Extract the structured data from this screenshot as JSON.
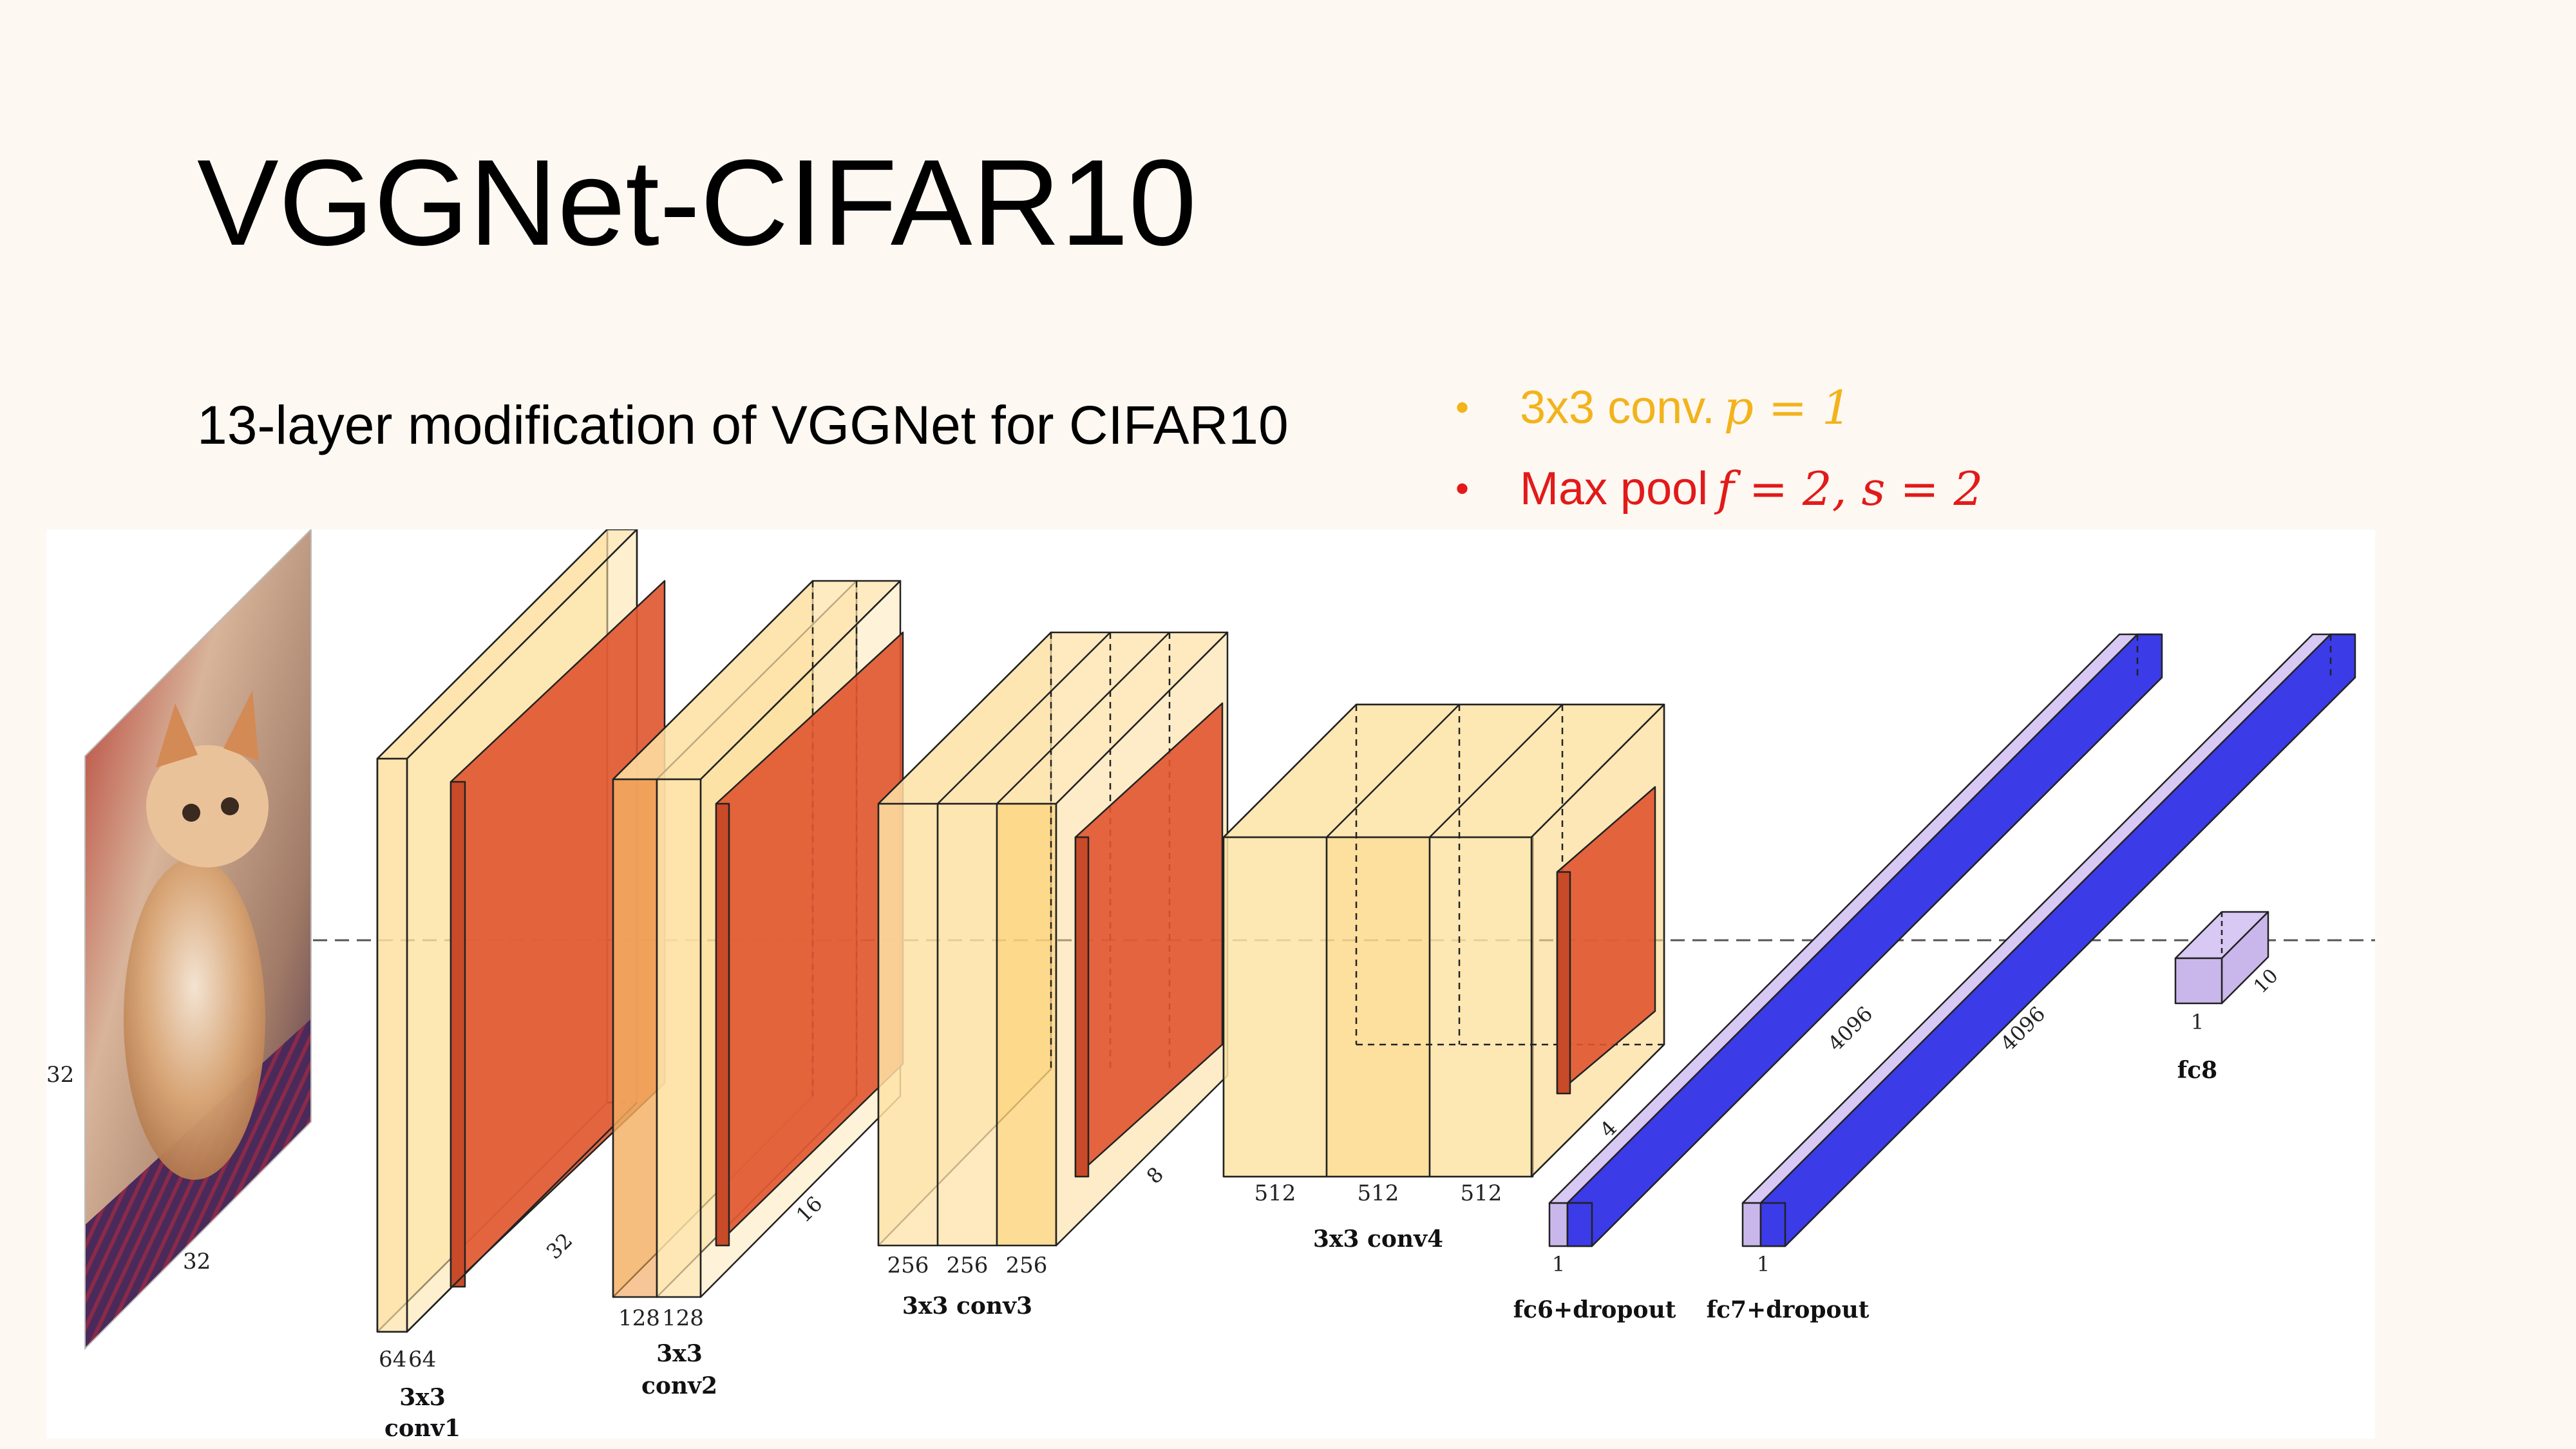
{
  "slide": {
    "title": "VGGNet-CIFAR10",
    "subtitle": "13-layer modification of VGGNet for CIFAR10"
  },
  "legend": {
    "conv": {
      "bullet": "•",
      "text": "3x3 conv.",
      "math": "p = 1",
      "color": "#f2b31b"
    },
    "pool": {
      "bullet": "•",
      "text": "Max pool",
      "math": "f = 2, s = 2",
      "color": "#e21a1a"
    }
  },
  "diagram": {
    "input": {
      "height_label": "32",
      "width_label": "32",
      "image": "kitten-photo"
    },
    "conv1": {
      "channels": [
        "64",
        "64"
      ],
      "spatial": "32",
      "label_line1": "3x3",
      "label_line2": "conv1"
    },
    "conv2": {
      "channels": [
        "128",
        "128"
      ],
      "spatial": "16",
      "label_line1": "3x3",
      "label_line2": "conv2"
    },
    "conv3": {
      "channels": [
        "256",
        "256",
        "256"
      ],
      "spatial": "8",
      "label": "3x3 conv3"
    },
    "conv4": {
      "channels": [
        "512",
        "512",
        "512"
      ],
      "spatial": "4",
      "label": "3x3 conv4"
    },
    "fc6": {
      "width": "1",
      "depth": "4096",
      "label": "fc6+dropout"
    },
    "fc7": {
      "width": "1",
      "depth": "4096",
      "label": "fc7+dropout"
    },
    "fc8": {
      "width": "1",
      "depth": "10",
      "label": "fc8"
    },
    "colors": {
      "conv": "#fcd98f",
      "pool": "#e0552f",
      "fc": "#3b3be8",
      "fc_face": "#c9b7ec"
    }
  }
}
